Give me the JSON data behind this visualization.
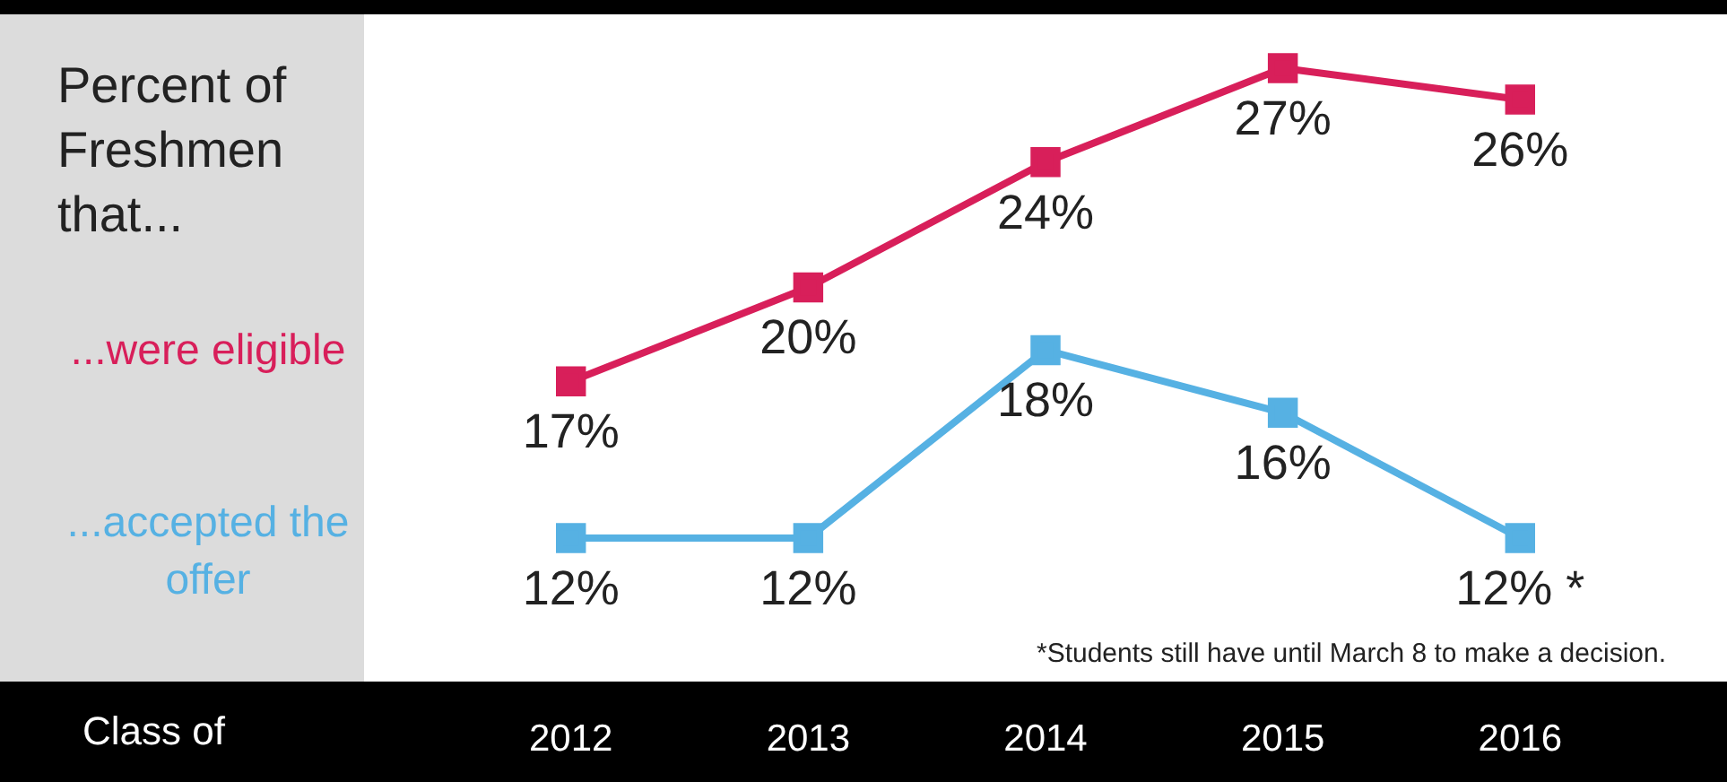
{
  "chart_data": {
    "type": "line",
    "title": "Percent of Freshmen that...",
    "categories": [
      "2012",
      "2013",
      "2014",
      "2015",
      "2016"
    ],
    "series": [
      {
        "name": "...were eligible",
        "color": "#d81f5a",
        "values": [
          17,
          20,
          24,
          27,
          26
        ],
        "value_labels": [
          "17%",
          "20%",
          "24%",
          "27%",
          "26%"
        ]
      },
      {
        "name": "...accepted the offer",
        "color": "#56b1e3",
        "values": [
          12,
          12,
          18,
          16,
          12
        ],
        "value_labels": [
          "12%",
          "12%",
          "18%",
          "16%",
          "12% *"
        ]
      }
    ],
    "marker": "square",
    "line_style": "solid",
    "annotations": [
      "Class of",
      "*Students still have until March 8 to make a decision."
    ]
  }
}
